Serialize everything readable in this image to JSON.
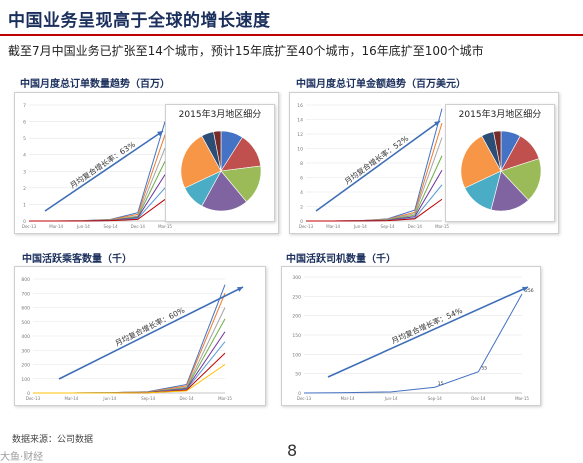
{
  "slide": {
    "title": "中国业务呈现高于全球的增长速度",
    "subtitle": "截至7月中国业务已扩张至14个城市，预计15年底扩至40个城市，16年底扩至100个城市",
    "source": "数据来源：公司数据",
    "page_number": "8",
    "watermark": "大鱼·财经"
  },
  "panels": [
    {
      "title": "中国月度总订单数量趋势（百万）",
      "growth_label": "月均复合增长率：63%",
      "inset_title": "2015年3月地区细分"
    },
    {
      "title": "中国月度总订单金额趋势（百万美元）",
      "growth_label": "月均复合增长率：52%",
      "inset_title": "2015年3月地区细分"
    },
    {
      "title": "中国活跃乘客数量（千）",
      "growth_label": "月均复合增长率：60%"
    },
    {
      "title": "中国活跃司机数量（千）",
      "growth_label": "月均复合增长率：54%"
    }
  ],
  "colors": {
    "title": "#1b2f5c",
    "rule": "#c00000",
    "arrow": "#3f6fb8"
  },
  "chart_data": [
    {
      "type": "line",
      "title": "中国月度总订单数量趋势（百万）",
      "ylim": [
        0,
        7
      ],
      "yticks": [
        "7",
        "6",
        "5",
        "4",
        "3",
        "2",
        "1",
        "0"
      ],
      "x": [
        "Dec-13",
        "Mar-14",
        "Jun-14",
        "Sep-14",
        "Dec-14",
        "Mar-15"
      ],
      "series": [
        {
          "values": [
            0,
            0,
            0.02,
            0.1,
            0.5,
            6.0
          ],
          "color": "#4472c4"
        },
        {
          "values": [
            0,
            0,
            0.01,
            0.08,
            0.4,
            5.2
          ],
          "color": "#ed7d31"
        },
        {
          "values": [
            0,
            0,
            0.01,
            0.06,
            0.3,
            4.4
          ],
          "color": "#a5a5a5"
        },
        {
          "values": [
            0,
            0,
            0.01,
            0.05,
            0.25,
            3.6
          ],
          "color": "#70ad47"
        },
        {
          "values": [
            0,
            0,
            0,
            0.04,
            0.2,
            2.8
          ],
          "color": "#7030a0"
        },
        {
          "values": [
            0,
            0,
            0,
            0.03,
            0.15,
            2.0
          ],
          "color": "#5b9bd5"
        },
        {
          "values": [
            0,
            0,
            0,
            0.02,
            0.1,
            1.3
          ],
          "color": "#c00000"
        }
      ]
    },
    {
      "type": "pie",
      "title": "2015年3月地区细分",
      "values": [
        9,
        14,
        16,
        19,
        10,
        24,
        5,
        3
      ],
      "colors": [
        "#4472c4",
        "#c0504d",
        "#9bbb59",
        "#8064a2",
        "#4bacc6",
        "#f79646",
        "#2c4d75",
        "#772c2a"
      ]
    },
    {
      "type": "line",
      "title": "中国月度总订单金额趋势（百万美元）",
      "ylim": [
        0,
        16
      ],
      "yticks": [
        "16",
        "14",
        "12",
        "10",
        "8",
        "6",
        "4",
        "2",
        "0"
      ],
      "x": [
        "Dec-13",
        "Mar-14",
        "Jun-14",
        "Sep-14",
        "Dec-14",
        "Mar-15"
      ],
      "series": [
        {
          "values": [
            0,
            0,
            0.05,
            0.3,
            1.5,
            15.5
          ],
          "color": "#4472c4"
        },
        {
          "values": [
            0,
            0,
            0.04,
            0.25,
            1.2,
            13.5
          ],
          "color": "#ed7d31"
        },
        {
          "values": [
            0,
            0,
            0.03,
            0.2,
            1.0,
            11.5
          ],
          "color": "#a5a5a5"
        },
        {
          "values": [
            0,
            0,
            0.02,
            0.15,
            0.8,
            9.0
          ],
          "color": "#70ad47"
        },
        {
          "values": [
            0,
            0,
            0.02,
            0.1,
            0.6,
            7.0
          ],
          "color": "#7030a0"
        },
        {
          "values": [
            0,
            0,
            0.01,
            0.08,
            0.4,
            5.0
          ],
          "color": "#5b9bd5"
        },
        {
          "values": [
            0,
            0,
            0.01,
            0.05,
            0.3,
            3.0
          ],
          "color": "#c00000"
        }
      ]
    },
    {
      "type": "pie",
      "title": "2015年3月地区细分",
      "values": [
        8,
        12,
        18,
        16,
        14,
        24,
        5,
        3
      ],
      "colors": [
        "#4472c4",
        "#c0504d",
        "#9bbb59",
        "#8064a2",
        "#4bacc6",
        "#f79646",
        "#2c4d75",
        "#772c2a"
      ]
    },
    {
      "type": "line",
      "title": "中国活跃乘客数量（千）",
      "ylim": [
        0,
        800
      ],
      "yticks": [
        "800",
        "700",
        "600",
        "500",
        "400",
        "300",
        "200",
        "100",
        "0"
      ],
      "x": [
        "Dec-13",
        "Mar-14",
        "Jun-14",
        "Sep-14",
        "Dec-14",
        "Mar-15"
      ],
      "series": [
        {
          "values": [
            0,
            0,
            2,
            10,
            60,
            760
          ],
          "color": "#4472c4"
        },
        {
          "values": [
            0,
            0,
            2,
            8,
            50,
            700
          ],
          "color": "#ed7d31"
        },
        {
          "values": [
            0,
            0,
            1,
            6,
            40,
            600
          ],
          "color": "#a5a5a5"
        },
        {
          "values": [
            0,
            0,
            1,
            5,
            35,
            520
          ],
          "color": "#70ad47"
        },
        {
          "values": [
            0,
            0,
            1,
            4,
            30,
            430
          ],
          "color": "#7030a0"
        },
        {
          "values": [
            0,
            0,
            1,
            3,
            25,
            360
          ],
          "color": "#5b9bd5"
        },
        {
          "values": [
            0,
            0,
            0,
            2,
            20,
            280
          ],
          "color": "#c00000"
        },
        {
          "values": [
            0,
            0,
            0,
            2,
            15,
            200
          ],
          "color": "#ffc000"
        }
      ]
    },
    {
      "type": "line",
      "title": "中国活跃司机数量（千）",
      "ylim": [
        0,
        300
      ],
      "yticks": [
        "300",
        "250",
        "200",
        "150",
        "100",
        "50",
        "0"
      ],
      "x": [
        "Dec-13",
        "Mar-14",
        "Jun-14",
        "Sep-14",
        "Dec-14",
        "Mar-15"
      ],
      "series": [
        {
          "values": [
            0,
            1,
            3,
            15,
            55,
            256
          ],
          "color": "#4472c4"
        }
      ],
      "data_labels": [
        {
          "index": 3,
          "text": "15"
        },
        {
          "index": 4,
          "text": "55"
        },
        {
          "index": 5,
          "text": "256"
        }
      ]
    }
  ]
}
